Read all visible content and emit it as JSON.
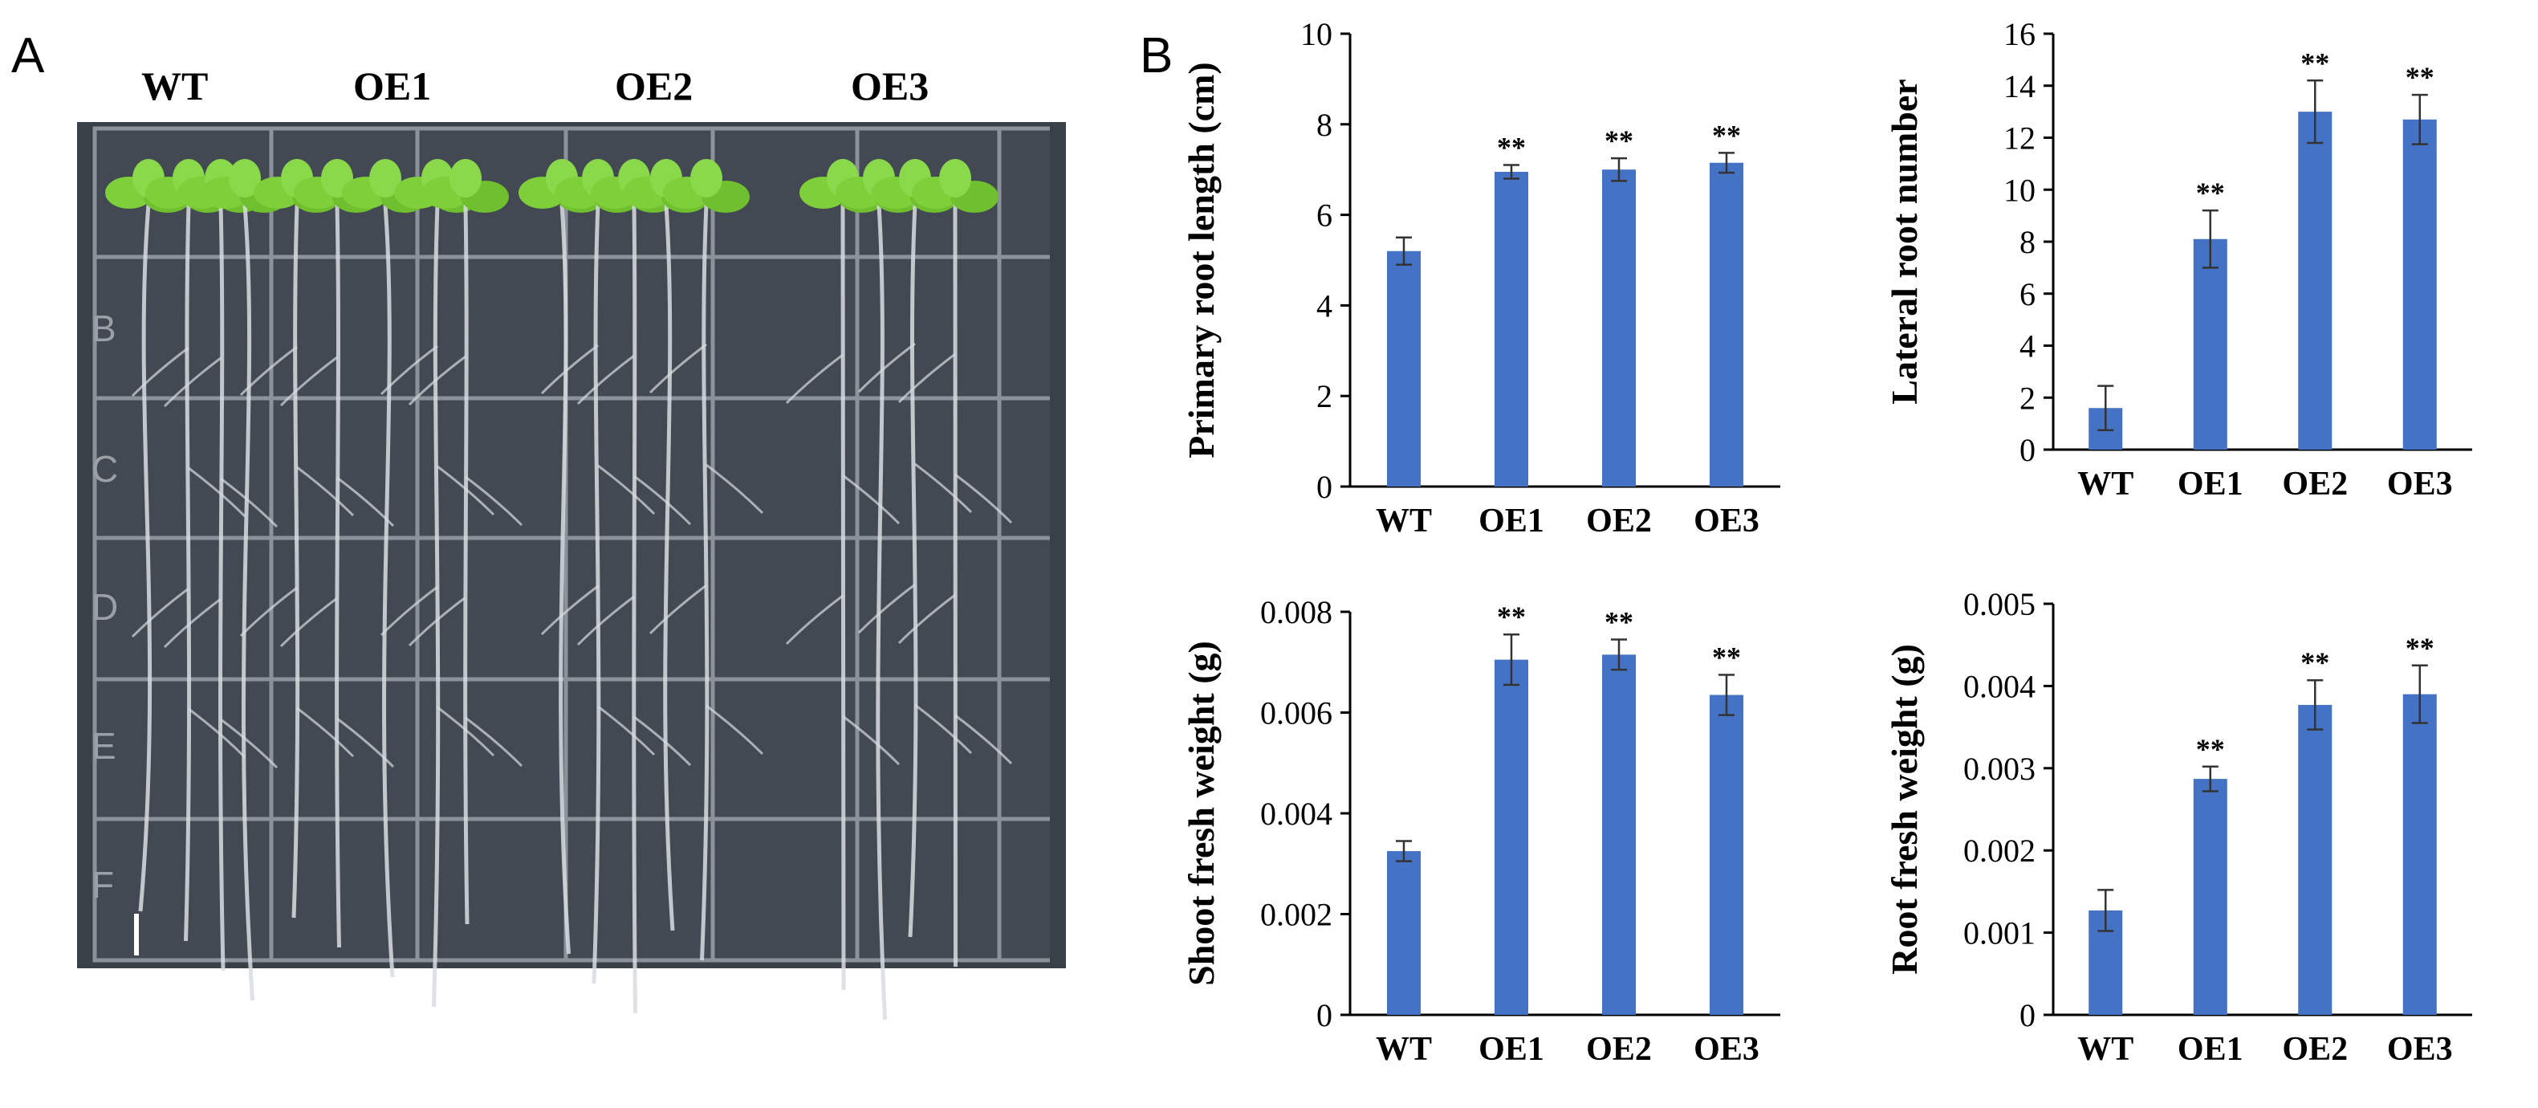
{
  "panel_a": {
    "letter": "A",
    "genotypes": [
      "WT",
      "OE1",
      "OE2",
      "OE3"
    ],
    "grid_row_letters": [
      "B",
      "C",
      "D",
      "E",
      "F"
    ],
    "colors": {
      "agar": "#3a4048",
      "leaf": "#7fcf3a",
      "root": "#d9dde0",
      "grid": "#8c9299"
    }
  },
  "panel_b": {
    "letter": "B"
  },
  "chart_data": [
    {
      "type": "bar",
      "ylabel": "Primary root length (cm)",
      "categories": [
        "WT",
        "OE1",
        "OE2",
        "OE3"
      ],
      "values": [
        5.2,
        6.95,
        7.0,
        7.15
      ],
      "errors": [
        0.3,
        0.15,
        0.25,
        0.22
      ],
      "significance": [
        "",
        "**",
        "**",
        "**"
      ],
      "ylim": [
        0,
        10
      ],
      "yticks": [
        "0",
        "2",
        "4",
        "6",
        "8",
        "10"
      ],
      "bar_color": "#4472c4"
    },
    {
      "type": "bar",
      "ylabel": "Lateral root number",
      "categories": [
        "WT",
        "OE1",
        "OE2",
        "OE3"
      ],
      "values": [
        1.6,
        8.1,
        13.0,
        12.7
      ],
      "errors": [
        0.85,
        1.1,
        1.2,
        0.95
      ],
      "significance": [
        "",
        "**",
        "**",
        "**"
      ],
      "ylim": [
        0,
        16
      ],
      "yticks": [
        "0",
        "2",
        "4",
        "6",
        "8",
        "10",
        "12",
        "14",
        "16"
      ],
      "bar_color": "#4472c4"
    },
    {
      "type": "bar",
      "ylabel": "Shoot fresh weight (g)",
      "categories": [
        "WT",
        "OE1",
        "OE2",
        "OE3"
      ],
      "values": [
        0.00325,
        0.00705,
        0.00715,
        0.00635
      ],
      "errors": [
        0.0002,
        0.0005,
        0.0003,
        0.0004
      ],
      "significance": [
        "",
        "**",
        "**",
        "**"
      ],
      "ylim": [
        0,
        0.008
      ],
      "yticks": [
        "0",
        "0.002",
        "0.004",
        "0.006",
        "0.008"
      ],
      "bar_color": "#4472c4"
    },
    {
      "type": "bar",
      "ylabel": "Root fresh weight (g)",
      "categories": [
        "WT",
        "OE1",
        "OE2",
        "OE3"
      ],
      "values": [
        0.00127,
        0.00287,
        0.00377,
        0.0039
      ],
      "errors": [
        0.00025,
        0.00015,
        0.0003,
        0.00035
      ],
      "significance": [
        "",
        "**",
        "**",
        "**"
      ],
      "ylim": [
        0,
        0.005
      ],
      "yticks": [
        "0",
        "0.001",
        "0.002",
        "0.003",
        "0.004",
        "0.005"
      ],
      "bar_color": "#4472c4"
    }
  ]
}
